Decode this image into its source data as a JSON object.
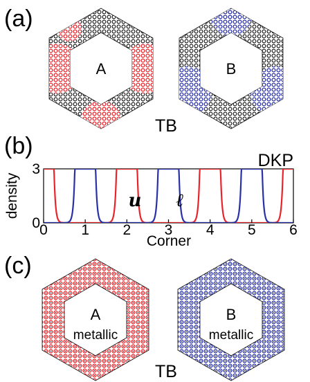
{
  "panels": {
    "a": {
      "label": "(a)",
      "left_hexagon": {
        "label": "A",
        "highlight_color": "#e8242b",
        "base_color": "#111111"
      },
      "right_hexagon": {
        "label": "B",
        "highlight_color": "#2730a6",
        "base_color": "#111111"
      },
      "caption": "TB"
    },
    "b": {
      "label": "(b)",
      "legend_text": "DKP",
      "curve_labels": {
        "u": "u",
        "l": "ℓ"
      }
    },
    "c": {
      "label": "(c)",
      "left_hexagon": {
        "label": "A",
        "sublabel": "metallic",
        "color": "#e8242b"
      },
      "right_hexagon": {
        "label": "B",
        "sublabel": "metallic",
        "color": "#2730a6"
      },
      "caption": "TB"
    }
  },
  "chart_data": {
    "type": "line",
    "xlabel": "Corner",
    "ylabel": "density",
    "xlim": [
      0,
      6
    ],
    "ylim": [
      0,
      3
    ],
    "xticks": [
      "0",
      "1",
      "2",
      "3",
      "4",
      "5",
      "6"
    ],
    "yticks": [
      "0",
      "3"
    ],
    "grid": false,
    "series": [
      {
        "id": "red",
        "color": "#e8242b",
        "plateaus": [
          [
            -0.25,
            0.25
          ],
          [
            1.75,
            2.25
          ],
          [
            3.75,
            4.25
          ],
          [
            5.75,
            6.25
          ]
        ]
      },
      {
        "id": "blue",
        "color": "#2730a6",
        "plateaus": [
          [
            0.75,
            1.25
          ],
          [
            2.75,
            3.25
          ],
          [
            4.75,
            5.25
          ]
        ]
      }
    ]
  }
}
